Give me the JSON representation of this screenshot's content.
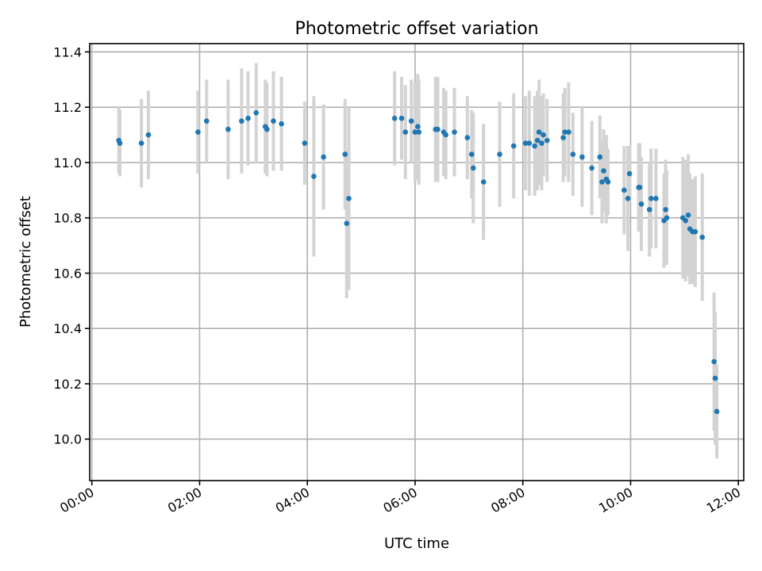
{
  "chart_data": {
    "type": "scatter",
    "title": "Photometric offset variation",
    "xlabel": "UTC time",
    "ylabel": "Photometric offset",
    "x_unit": "hours",
    "xlim": [
      -0.04,
      12.1
    ],
    "ylim": [
      9.85,
      11.43
    ],
    "xticks": [
      0,
      2,
      4,
      6,
      8,
      10,
      12
    ],
    "xtick_labels": [
      "00:00",
      "02:00",
      "04:00",
      "06:00",
      "08:00",
      "10:00",
      "12:00"
    ],
    "yticks": [
      10.0,
      10.2,
      10.4,
      10.6,
      10.8,
      11.0,
      11.2,
      11.4
    ],
    "ytick_labels": [
      "10.0",
      "10.2",
      "10.4",
      "10.6",
      "10.8",
      "11.0",
      "11.2",
      "11.4"
    ],
    "grid": true,
    "colors": {
      "points": "#1f77b4",
      "errorbars": "#d3d3d3"
    },
    "points": [
      {
        "x": 0.5,
        "y": 11.08,
        "err": 0.12
      },
      {
        "x": 0.52,
        "y": 11.07,
        "err": 0.12
      },
      {
        "x": 0.92,
        "y": 11.07,
        "err": 0.16
      },
      {
        "x": 1.05,
        "y": 11.1,
        "err": 0.16
      },
      {
        "x": 1.97,
        "y": 11.11,
        "err": 0.15
      },
      {
        "x": 2.13,
        "y": 11.15,
        "err": 0.15
      },
      {
        "x": 2.53,
        "y": 11.12,
        "err": 0.18
      },
      {
        "x": 2.78,
        "y": 11.15,
        "err": 0.19
      },
      {
        "x": 2.9,
        "y": 11.16,
        "err": 0.17
      },
      {
        "x": 3.05,
        "y": 11.18,
        "err": 0.18
      },
      {
        "x": 3.22,
        "y": 11.13,
        "err": 0.17
      },
      {
        "x": 3.25,
        "y": 11.12,
        "err": 0.17
      },
      {
        "x": 3.37,
        "y": 11.15,
        "err": 0.18
      },
      {
        "x": 3.52,
        "y": 11.14,
        "err": 0.17
      },
      {
        "x": 3.95,
        "y": 11.07,
        "err": 0.15
      },
      {
        "x": 4.12,
        "y": 10.95,
        "err": 0.29
      },
      {
        "x": 4.3,
        "y": 11.02,
        "err": 0.19
      },
      {
        "x": 4.7,
        "y": 11.03,
        "err": 0.2
      },
      {
        "x": 4.73,
        "y": 10.78,
        "err": 0.27
      },
      {
        "x": 4.77,
        "y": 10.87,
        "err": 0.33
      },
      {
        "x": 5.62,
        "y": 11.16,
        "err": 0.17
      },
      {
        "x": 5.75,
        "y": 11.16,
        "err": 0.15
      },
      {
        "x": 5.82,
        "y": 11.11,
        "err": 0.17
      },
      {
        "x": 5.93,
        "y": 11.15,
        "err": 0.15
      },
      {
        "x": 6.0,
        "y": 11.11,
        "err": 0.18
      },
      {
        "x": 6.05,
        "y": 11.13,
        "err": 0.19
      },
      {
        "x": 6.07,
        "y": 11.11,
        "err": 0.19
      },
      {
        "x": 6.38,
        "y": 11.12,
        "err": 0.19
      },
      {
        "x": 6.42,
        "y": 11.12,
        "err": 0.19
      },
      {
        "x": 6.53,
        "y": 11.11,
        "err": 0.16
      },
      {
        "x": 6.57,
        "y": 11.1,
        "err": 0.16
      },
      {
        "x": 6.73,
        "y": 11.11,
        "err": 0.16
      },
      {
        "x": 6.97,
        "y": 11.09,
        "err": 0.15
      },
      {
        "x": 7.05,
        "y": 11.03,
        "err": 0.16
      },
      {
        "x": 7.08,
        "y": 10.98,
        "err": 0.2
      },
      {
        "x": 7.27,
        "y": 10.93,
        "err": 0.21
      },
      {
        "x": 7.57,
        "y": 11.03,
        "err": 0.19
      },
      {
        "x": 7.83,
        "y": 11.06,
        "err": 0.19
      },
      {
        "x": 8.05,
        "y": 11.07,
        "err": 0.17
      },
      {
        "x": 8.12,
        "y": 11.07,
        "err": 0.19
      },
      {
        "x": 8.22,
        "y": 11.06,
        "err": 0.18
      },
      {
        "x": 8.27,
        "y": 11.08,
        "err": 0.18
      },
      {
        "x": 8.3,
        "y": 11.11,
        "err": 0.19
      },
      {
        "x": 8.35,
        "y": 11.07,
        "err": 0.17
      },
      {
        "x": 8.38,
        "y": 11.1,
        "err": 0.15
      },
      {
        "x": 8.45,
        "y": 11.08,
        "err": 0.15
      },
      {
        "x": 8.75,
        "y": 11.09,
        "err": 0.16
      },
      {
        "x": 8.78,
        "y": 11.11,
        "err": 0.16
      },
      {
        "x": 8.85,
        "y": 11.11,
        "err": 0.18
      },
      {
        "x": 8.93,
        "y": 11.03,
        "err": 0.15
      },
      {
        "x": 9.1,
        "y": 11.02,
        "err": 0.18
      },
      {
        "x": 9.28,
        "y": 10.98,
        "err": 0.17
      },
      {
        "x": 9.43,
        "y": 11.02,
        "err": 0.15
      },
      {
        "x": 9.47,
        "y": 10.93,
        "err": 0.15
      },
      {
        "x": 9.5,
        "y": 10.97,
        "err": 0.15
      },
      {
        "x": 9.55,
        "y": 10.94,
        "err": 0.16
      },
      {
        "x": 9.58,
        "y": 10.93,
        "err": 0.12
      },
      {
        "x": 9.88,
        "y": 10.9,
        "err": 0.16
      },
      {
        "x": 9.95,
        "y": 10.87,
        "err": 0.19
      },
      {
        "x": 9.98,
        "y": 10.96,
        "err": 0.1
      },
      {
        "x": 10.15,
        "y": 10.91,
        "err": 0.16
      },
      {
        "x": 10.17,
        "y": 10.91,
        "err": 0.16
      },
      {
        "x": 10.2,
        "y": 10.85,
        "err": 0.17
      },
      {
        "x": 10.35,
        "y": 10.83,
        "err": 0.17
      },
      {
        "x": 10.38,
        "y": 10.87,
        "err": 0.18
      },
      {
        "x": 10.47,
        "y": 10.87,
        "err": 0.18
      },
      {
        "x": 10.62,
        "y": 10.79,
        "err": 0.17
      },
      {
        "x": 10.65,
        "y": 10.83,
        "err": 0.18
      },
      {
        "x": 10.67,
        "y": 10.8,
        "err": 0.17
      },
      {
        "x": 10.97,
        "y": 10.8,
        "err": 0.22
      },
      {
        "x": 11.02,
        "y": 10.79,
        "err": 0.22
      },
      {
        "x": 11.07,
        "y": 10.81,
        "err": 0.22
      },
      {
        "x": 11.1,
        "y": 10.76,
        "err": 0.2
      },
      {
        "x": 11.15,
        "y": 10.75,
        "err": 0.19
      },
      {
        "x": 11.2,
        "y": 10.75,
        "err": 0.2
      },
      {
        "x": 11.33,
        "y": 10.73,
        "err": 0.23
      },
      {
        "x": 11.55,
        "y": 10.28,
        "err": 0.25
      },
      {
        "x": 11.57,
        "y": 10.22,
        "err": 0.24
      },
      {
        "x": 11.6,
        "y": 10.1,
        "err": 0.17
      }
    ]
  }
}
